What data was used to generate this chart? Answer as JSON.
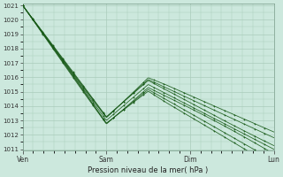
{
  "title": "",
  "xlabel": "Pression niveau de la mer( hPa )",
  "background_color": "#cce8dd",
  "grid_color": "#aaccbb",
  "line_color": "#1a5c1a",
  "ylim": [
    1011,
    1021
  ],
  "yticks": [
    1011,
    1012,
    1013,
    1014,
    1015,
    1016,
    1017,
    1018,
    1019,
    1020,
    1021
  ],
  "xtick_labels": [
    "Ven",
    "Sam",
    "Dim",
    "Lun"
  ],
  "xtick_positions": [
    0,
    48,
    96,
    144
  ],
  "total_hours": 144,
  "n_lines": 7
}
